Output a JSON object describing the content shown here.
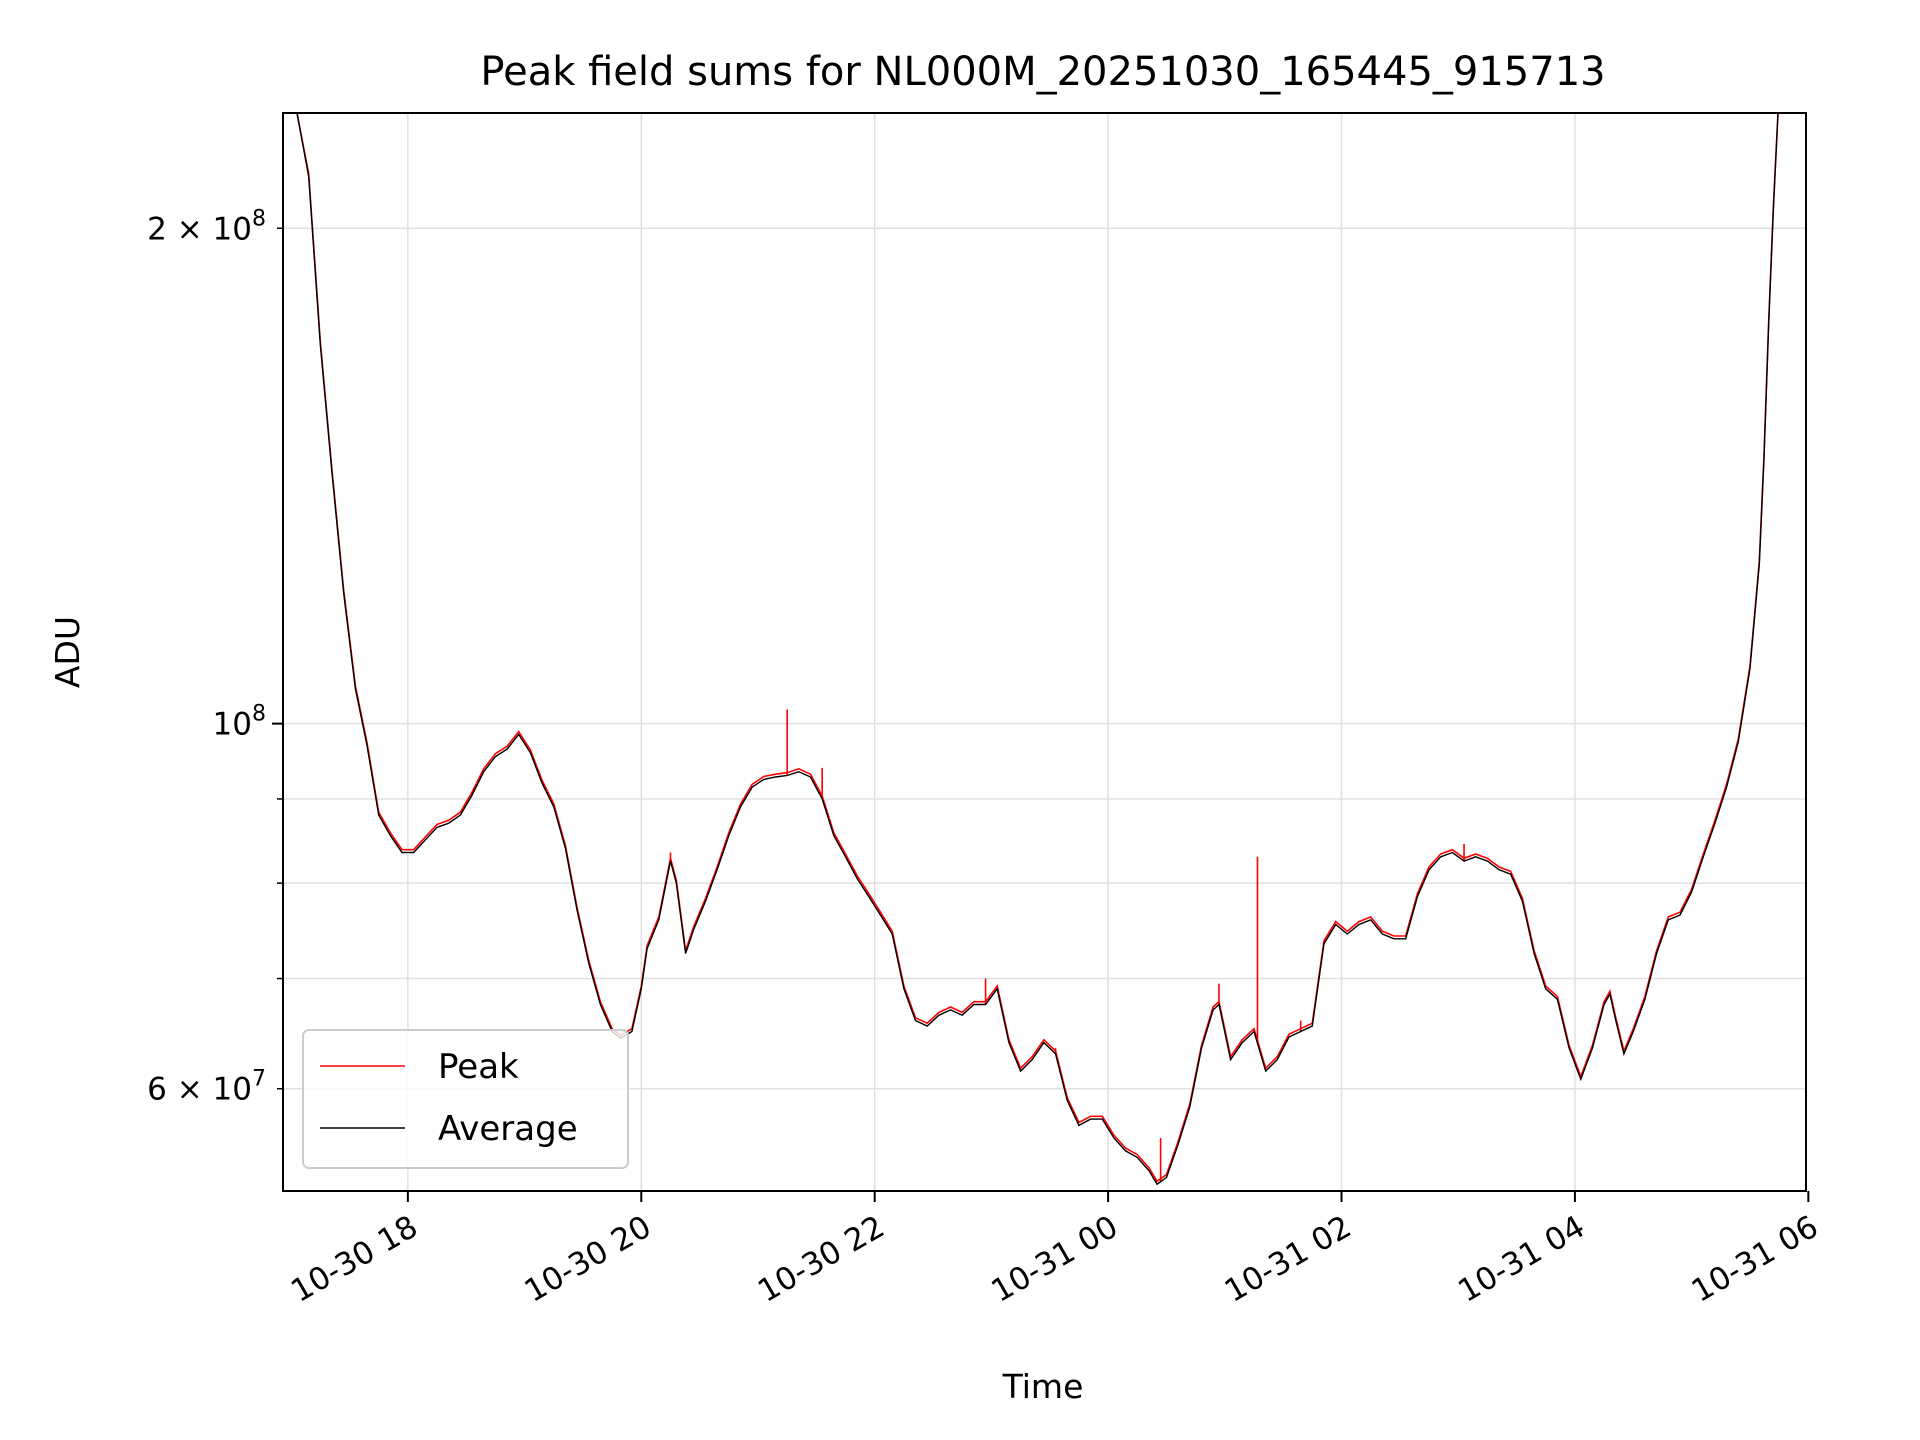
{
  "chart_data": {
    "type": "line",
    "title": "Peak field sums for NL000M_20251030_165445_915713",
    "xlabel": "Time",
    "ylabel": "ADU",
    "yscale": "log",
    "xlim_hours": [
      16.93,
      29.98
    ],
    "ylim": [
      52000000,
      235000000
    ],
    "grid": true,
    "legend_position": "lower-left",
    "x_ticks": [
      {
        "hour": 18,
        "label": "10-30 18"
      },
      {
        "hour": 20,
        "label": "10-30 20"
      },
      {
        "hour": 22,
        "label": "10-30 22"
      },
      {
        "hour": 24,
        "label": "10-31 00"
      },
      {
        "hour": 26,
        "label": "10-31 02"
      },
      {
        "hour": 28,
        "label": "10-31 04"
      },
      {
        "hour": 30,
        "label": "10-31 06"
      }
    ],
    "y_major_ticks": [
      {
        "value": 100000000,
        "label_base": "10",
        "label_exp": "8"
      }
    ],
    "y_minor_ticks": [
      {
        "value": 60000000,
        "mantissa": "6",
        "label_base": "10",
        "label_exp": "7",
        "labeled": true
      },
      {
        "value": 70000000,
        "labeled": false
      },
      {
        "value": 80000000,
        "labeled": false
      },
      {
        "value": 90000000,
        "labeled": false
      },
      {
        "value": 200000000,
        "mantissa": "2",
        "label_base": "10",
        "label_exp": "8",
        "labeled": true
      }
    ],
    "series": [
      {
        "name": "Peak",
        "color": "#ff0000",
        "spikes": [
          {
            "x": 21.25,
            "y": 102000000
          },
          {
            "x": 25.28,
            "y": 83000000
          },
          {
            "x": 23.55,
            "y": 63500000
          },
          {
            "x": 24.95,
            "y": 69500000
          },
          {
            "x": 22.95,
            "y": 70000000
          },
          {
            "x": 21.55,
            "y": 94000000
          },
          {
            "x": 20.25,
            "y": 83500000
          },
          {
            "x": 27.05,
            "y": 84500000
          },
          {
            "x": 24.45,
            "y": 56000000
          },
          {
            "x": 25.65,
            "y": 66000000
          }
        ]
      },
      {
        "name": "Average",
        "color": "#000000",
        "points": [
          [
            16.95,
            240000000
          ],
          [
            17.05,
            240000000
          ],
          [
            17.15,
            215000000
          ],
          [
            17.25,
            170000000
          ],
          [
            17.35,
            142000000
          ],
          [
            17.45,
            120000000
          ],
          [
            17.55,
            105000000
          ],
          [
            17.65,
            97000000
          ],
          [
            17.75,
            88000000
          ],
          [
            17.85,
            85500000
          ],
          [
            17.95,
            83500000
          ],
          [
            18.05,
            83500000
          ],
          [
            18.15,
            85000000
          ],
          [
            18.25,
            86500000
          ],
          [
            18.35,
            87000000
          ],
          [
            18.45,
            88000000
          ],
          [
            18.55,
            90500000
          ],
          [
            18.65,
            93500000
          ],
          [
            18.75,
            95500000
          ],
          [
            18.85,
            96500000
          ],
          [
            18.95,
            98500000
          ],
          [
            19.05,
            96000000
          ],
          [
            19.15,
            92000000
          ],
          [
            19.25,
            89000000
          ],
          [
            19.35,
            84000000
          ],
          [
            19.45,
            77000000
          ],
          [
            19.55,
            71500000
          ],
          [
            19.65,
            67500000
          ],
          [
            19.75,
            65000000
          ],
          [
            19.82,
            64400000
          ],
          [
            19.92,
            65000000
          ],
          [
            20.0,
            69000000
          ],
          [
            20.05,
            73000000
          ],
          [
            20.15,
            76000000
          ],
          [
            20.25,
            82500000
          ],
          [
            20.3,
            80000000
          ],
          [
            20.38,
            72500000
          ],
          [
            20.45,
            75000000
          ],
          [
            20.55,
            78000000
          ],
          [
            20.65,
            81500000
          ],
          [
            20.75,
            85500000
          ],
          [
            20.85,
            89000000
          ],
          [
            20.95,
            91500000
          ],
          [
            21.05,
            92500000
          ],
          [
            21.15,
            92800000
          ],
          [
            21.25,
            93000000
          ],
          [
            21.35,
            93500000
          ],
          [
            21.45,
            92800000
          ],
          [
            21.55,
            90000000
          ],
          [
            21.65,
            85500000
          ],
          [
            21.75,
            83000000
          ],
          [
            21.85,
            80500000
          ],
          [
            21.95,
            78500000
          ],
          [
            22.05,
            76500000
          ],
          [
            22.15,
            74500000
          ],
          [
            22.25,
            69000000
          ],
          [
            22.35,
            66000000
          ],
          [
            22.45,
            65500000
          ],
          [
            22.55,
            66500000
          ],
          [
            22.65,
            67000000
          ],
          [
            22.75,
            66500000
          ],
          [
            22.85,
            67500000
          ],
          [
            22.95,
            67500000
          ],
          [
            23.05,
            69000000
          ],
          [
            23.15,
            64000000
          ],
          [
            23.25,
            61500000
          ],
          [
            23.35,
            62500000
          ],
          [
            23.45,
            64000000
          ],
          [
            23.55,
            63000000
          ],
          [
            23.65,
            59000000
          ],
          [
            23.75,
            57000000
          ],
          [
            23.85,
            57500000
          ],
          [
            23.95,
            57500000
          ],
          [
            24.05,
            56000000
          ],
          [
            24.15,
            55000000
          ],
          [
            24.25,
            54500000
          ],
          [
            24.35,
            53500000
          ],
          [
            24.42,
            52500000
          ],
          [
            24.5,
            53000000
          ],
          [
            24.6,
            55500000
          ],
          [
            24.7,
            58500000
          ],
          [
            24.8,
            63500000
          ],
          [
            24.9,
            67000000
          ],
          [
            24.95,
            67500000
          ],
          [
            25.05,
            62500000
          ],
          [
            25.15,
            64000000
          ],
          [
            25.25,
            65000000
          ],
          [
            25.35,
            61500000
          ],
          [
            25.45,
            62500000
          ],
          [
            25.55,
            64500000
          ],
          [
            25.65,
            65000000
          ],
          [
            25.75,
            65500000
          ],
          [
            25.85,
            73500000
          ],
          [
            25.95,
            75500000
          ],
          [
            26.05,
            74500000
          ],
          [
            26.15,
            75500000
          ],
          [
            26.25,
            76000000
          ],
          [
            26.35,
            74500000
          ],
          [
            26.45,
            74000000
          ],
          [
            26.55,
            74000000
          ],
          [
            26.65,
            78500000
          ],
          [
            26.75,
            81500000
          ],
          [
            26.85,
            83000000
          ],
          [
            26.95,
            83500000
          ],
          [
            27.05,
            82500000
          ],
          [
            27.15,
            83000000
          ],
          [
            27.25,
            82500000
          ],
          [
            27.35,
            81500000
          ],
          [
            27.45,
            81000000
          ],
          [
            27.55,
            78000000
          ],
          [
            27.65,
            72500000
          ],
          [
            27.75,
            69000000
          ],
          [
            27.85,
            68000000
          ],
          [
            27.95,
            63500000
          ],
          [
            28.05,
            60800000
          ],
          [
            28.15,
            63500000
          ],
          [
            28.25,
            67500000
          ],
          [
            28.3,
            68500000
          ],
          [
            28.35,
            66000000
          ],
          [
            28.42,
            63000000
          ],
          [
            28.5,
            65000000
          ],
          [
            28.6,
            68000000
          ],
          [
            28.7,
            72500000
          ],
          [
            28.8,
            76000000
          ],
          [
            28.9,
            76500000
          ],
          [
            29.0,
            79000000
          ],
          [
            29.1,
            83000000
          ],
          [
            29.2,
            87000000
          ],
          [
            29.3,
            91500000
          ],
          [
            29.4,
            97500000
          ],
          [
            29.5,
            108000000
          ],
          [
            29.58,
            125000000
          ],
          [
            29.62,
            145000000
          ],
          [
            29.66,
            175000000
          ],
          [
            29.7,
            205000000
          ],
          [
            29.74,
            235000000
          ],
          [
            29.78,
            240000000
          ]
        ]
      }
    ]
  }
}
